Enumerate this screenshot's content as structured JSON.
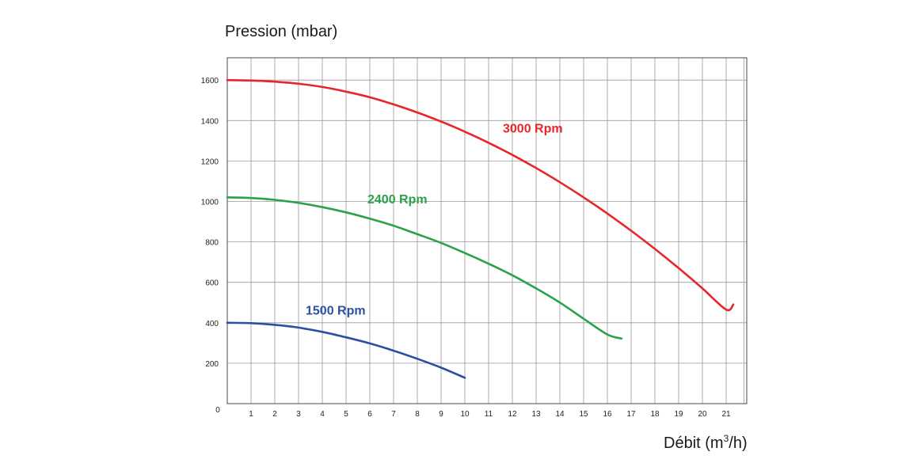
{
  "chart_data": {
    "type": "line",
    "ylabel": "Pression (mbar)",
    "xlabel_main": "Débit (m",
    "xlabel_sup": "3",
    "xlabel_end": "/h)",
    "xlim": [
      0,
      22
    ],
    "ylim": [
      0,
      1700
    ],
    "x_ticks": [
      0,
      1,
      2,
      3,
      4,
      5,
      6,
      7,
      8,
      9,
      10,
      11,
      12,
      13,
      14,
      15,
      16,
      17,
      18,
      19,
      20,
      21
    ],
    "y_ticks": [
      200,
      400,
      600,
      800,
      1000,
      1200,
      1400,
      1600
    ],
    "grid": true,
    "series": [
      {
        "name": "3000 Rpm",
        "color": "#e8262a",
        "x": [
          0,
          1,
          2,
          3,
          4,
          5,
          6,
          7,
          8,
          9,
          10,
          11,
          12,
          13,
          14,
          15,
          16,
          17,
          18,
          19,
          20,
          21,
          21.3
        ],
        "y": [
          1600,
          1598,
          1592,
          1582,
          1566,
          1543,
          1515,
          1480,
          1440,
          1395,
          1345,
          1290,
          1230,
          1165,
          1095,
          1020,
          940,
          855,
          765,
          670,
          570,
          465,
          490
        ]
      },
      {
        "name": "2400 Rpm",
        "color": "#2aa24a",
        "x": [
          0,
          1,
          2,
          3,
          4,
          5,
          6,
          7,
          8,
          9,
          10,
          11,
          12,
          13,
          14,
          15,
          16,
          16.6
        ],
        "y": [
          1020,
          1017,
          1008,
          993,
          972,
          946,
          915,
          880,
          838,
          795,
          745,
          692,
          635,
          570,
          500,
          420,
          342,
          322
        ]
      },
      {
        "name": "1500 Rpm",
        "color": "#2d4fa2",
        "x": [
          0,
          1,
          2,
          3,
          4,
          5,
          6,
          7,
          8,
          9,
          10
        ],
        "y": [
          400,
          398,
          390,
          376,
          355,
          328,
          298,
          262,
          222,
          178,
          128
        ]
      }
    ],
    "annotations": [
      {
        "text": "3000 Rpm",
        "x": 11.6,
        "y": 1340,
        "color": "#e8262a"
      },
      {
        "text": "2400 Rpm",
        "x": 5.9,
        "y": 990,
        "color": "#2aa24a"
      },
      {
        "text": "1500 Rpm",
        "x": 3.3,
        "y": 440,
        "color": "#2d4fa2"
      }
    ]
  }
}
